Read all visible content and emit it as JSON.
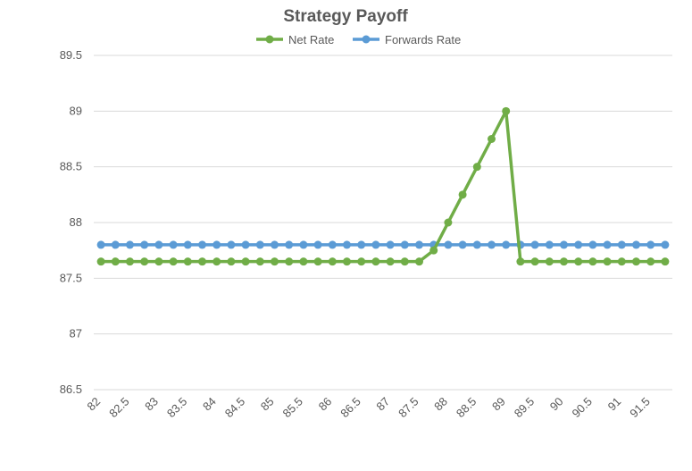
{
  "chart_data": {
    "type": "line",
    "title": "Strategy Payoff",
    "xlabel": "",
    "ylabel": "",
    "ylim": [
      86.5,
      89.5
    ],
    "y_ticks": [
      "86.5",
      "87",
      "87.5",
      "88",
      "88.5",
      "89",
      "89.5"
    ],
    "grid": true,
    "legend_position": "top",
    "categories": [
      "82",
      "82.25",
      "82.5",
      "82.75",
      "83",
      "83.25",
      "83.5",
      "83.75",
      "84",
      "84.25",
      "84.5",
      "84.75",
      "85",
      "85.25",
      "85.5",
      "85.75",
      "86",
      "86.25",
      "86.5",
      "86.75",
      "87",
      "87.25",
      "87.5",
      "87.75",
      "88",
      "88.25",
      "88.5",
      "88.75",
      "89",
      "89.25",
      "89.5",
      "89.75",
      "90",
      "90.25",
      "90.5",
      "90.75",
      "91",
      "91.25",
      "91.5",
      "91.75"
    ],
    "x_tick_labels": [
      "82",
      "82.5",
      "83",
      "83.5",
      "84",
      "84.5",
      "85",
      "85.5",
      "86",
      "86.5",
      "87",
      "87.5",
      "88",
      "88.5",
      "89",
      "89.5",
      "90",
      "90.5",
      "91",
      "91.5"
    ],
    "series": [
      {
        "name": "Net Rate",
        "color": "#70ad47",
        "values": [
          87.65,
          87.65,
          87.65,
          87.65,
          87.65,
          87.65,
          87.65,
          87.65,
          87.65,
          87.65,
          87.65,
          87.65,
          87.65,
          87.65,
          87.65,
          87.65,
          87.65,
          87.65,
          87.65,
          87.65,
          87.65,
          87.65,
          87.65,
          87.75,
          88.0,
          88.25,
          88.5,
          88.75,
          89.0,
          87.65,
          87.65,
          87.65,
          87.65,
          87.65,
          87.65,
          87.65,
          87.65,
          87.65,
          87.65,
          87.65
        ]
      },
      {
        "name": "Forwards Rate",
        "color": "#5b9bd5",
        "values": [
          87.8,
          87.8,
          87.8,
          87.8,
          87.8,
          87.8,
          87.8,
          87.8,
          87.8,
          87.8,
          87.8,
          87.8,
          87.8,
          87.8,
          87.8,
          87.8,
          87.8,
          87.8,
          87.8,
          87.8,
          87.8,
          87.8,
          87.8,
          87.8,
          87.8,
          87.8,
          87.8,
          87.8,
          87.8,
          87.8,
          87.8,
          87.8,
          87.8,
          87.8,
          87.8,
          87.8,
          87.8,
          87.8,
          87.8,
          87.8
        ]
      }
    ]
  }
}
